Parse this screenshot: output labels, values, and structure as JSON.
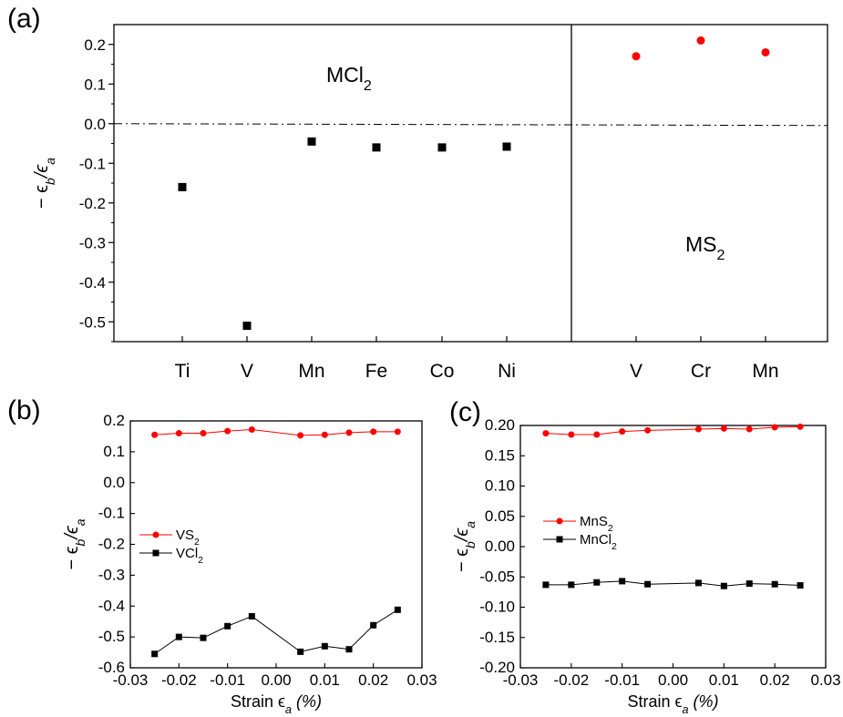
{
  "chart_data": [
    {
      "panel": "(a)",
      "type": "scatter",
      "ylabel_parts": [
        "− ϵ",
        "b",
        "/ϵ",
        "a"
      ],
      "ylim": [
        -0.55,
        0.25
      ],
      "yticks": [
        "0.2",
        "0.1",
        "0.0",
        "-0.1",
        "-0.2",
        "-0.3",
        "-0.4",
        "-0.5"
      ],
      "ytick_values": [
        0.2,
        0.1,
        0.0,
        -0.1,
        -0.2,
        -0.3,
        -0.4,
        -0.5
      ],
      "reference_line": 0.0,
      "groups": [
        {
          "label_parts": [
            "MCl",
            "2"
          ],
          "marker": "square",
          "color": "#000000",
          "categories": [
            "Ti",
            "V",
            "Mn",
            "Fe",
            "Co",
            "Ni"
          ],
          "values": [
            -0.16,
            -0.51,
            -0.045,
            -0.06,
            -0.06,
            -0.058
          ]
        },
        {
          "label_parts": [
            "MS",
            "2"
          ],
          "marker": "circle",
          "color": "#ff0000",
          "categories": [
            "V",
            "Cr",
            "Mn"
          ],
          "values": [
            0.17,
            0.21,
            0.18
          ]
        }
      ]
    },
    {
      "panel": "(b)",
      "type": "line",
      "xlabel_parts": [
        "Strain ϵ",
        "a",
        " (%)"
      ],
      "ylabel_parts": [
        "− ϵ",
        "b",
        "/ϵ",
        "a"
      ],
      "xlim": [
        -0.03,
        0.03
      ],
      "ylim": [
        -0.6,
        0.2
      ],
      "xticks": [
        "-0.03",
        "-0.02",
        "-0.01",
        "0.00",
        "0.01",
        "0.02",
        "0.03"
      ],
      "xtick_values": [
        -0.03,
        -0.02,
        -0.01,
        0.0,
        0.01,
        0.02,
        0.03
      ],
      "yticks": [
        "0.2",
        "0.1",
        "0.0",
        "-0.1",
        "-0.2",
        "-0.3",
        "-0.4",
        "-0.5",
        "-0.6"
      ],
      "ytick_values": [
        0.2,
        0.1,
        0.0,
        -0.1,
        -0.2,
        -0.3,
        -0.4,
        -0.5,
        -0.6
      ],
      "series": [
        {
          "name_parts": [
            "VS",
            "2"
          ],
          "marker": "circle",
          "color": "#ff0000",
          "x": [
            -0.025,
            -0.02,
            -0.015,
            -0.01,
            -0.005,
            0.005,
            0.01,
            0.015,
            0.02,
            0.025
          ],
          "y": [
            0.155,
            0.16,
            0.16,
            0.167,
            0.172,
            0.153,
            0.155,
            0.162,
            0.165,
            0.165
          ]
        },
        {
          "name_parts": [
            "VCl",
            "2"
          ],
          "marker": "square",
          "color": "#000000",
          "x": [
            -0.025,
            -0.02,
            -0.015,
            -0.01,
            -0.005,
            0.005,
            0.01,
            0.015,
            0.02,
            0.025
          ],
          "y": [
            -0.555,
            -0.5,
            -0.503,
            -0.465,
            -0.433,
            -0.548,
            -0.53,
            -0.54,
            -0.462,
            -0.412
          ]
        }
      ]
    },
    {
      "panel": "(c)",
      "type": "line",
      "xlabel_parts": [
        "Strain ϵ",
        "a",
        " (%)"
      ],
      "ylabel_parts": [
        "− ϵ",
        "b",
        "/ϵ",
        "a"
      ],
      "xlim": [
        -0.03,
        0.03
      ],
      "ylim": [
        -0.2,
        0.2
      ],
      "xticks": [
        "-0.03",
        "-0.02",
        "-0.01",
        "0.00",
        "0.01",
        "0.02",
        "0.03"
      ],
      "xtick_values": [
        -0.03,
        -0.02,
        -0.01,
        0.0,
        0.01,
        0.02,
        0.03
      ],
      "yticks": [
        "0.20",
        "0.15",
        "0.10",
        "0.05",
        "0.00",
        "-0.05",
        "-0.10",
        "-0.15",
        "-0.20"
      ],
      "ytick_values": [
        0.2,
        0.15,
        0.1,
        0.05,
        0.0,
        -0.05,
        -0.1,
        -0.15,
        -0.2
      ],
      "series": [
        {
          "name_parts": [
            "MnS",
            "2"
          ],
          "marker": "circle",
          "color": "#ff0000",
          "x": [
            -0.025,
            -0.02,
            -0.015,
            -0.01,
            -0.005,
            0.005,
            0.01,
            0.015,
            0.02,
            0.025
          ],
          "y": [
            0.187,
            0.185,
            0.185,
            0.19,
            0.192,
            0.194,
            0.195,
            0.194,
            0.197,
            0.198
          ]
        },
        {
          "name_parts": [
            "MnCl",
            "2"
          ],
          "marker": "square",
          "color": "#000000",
          "x": [
            -0.025,
            -0.02,
            -0.015,
            -0.01,
            -0.005,
            0.005,
            0.01,
            0.015,
            0.02,
            0.025
          ],
          "y": [
            -0.063,
            -0.063,
            -0.059,
            -0.057,
            -0.062,
            -0.06,
            -0.065,
            -0.061,
            -0.062,
            -0.064
          ]
        }
      ]
    }
  ]
}
